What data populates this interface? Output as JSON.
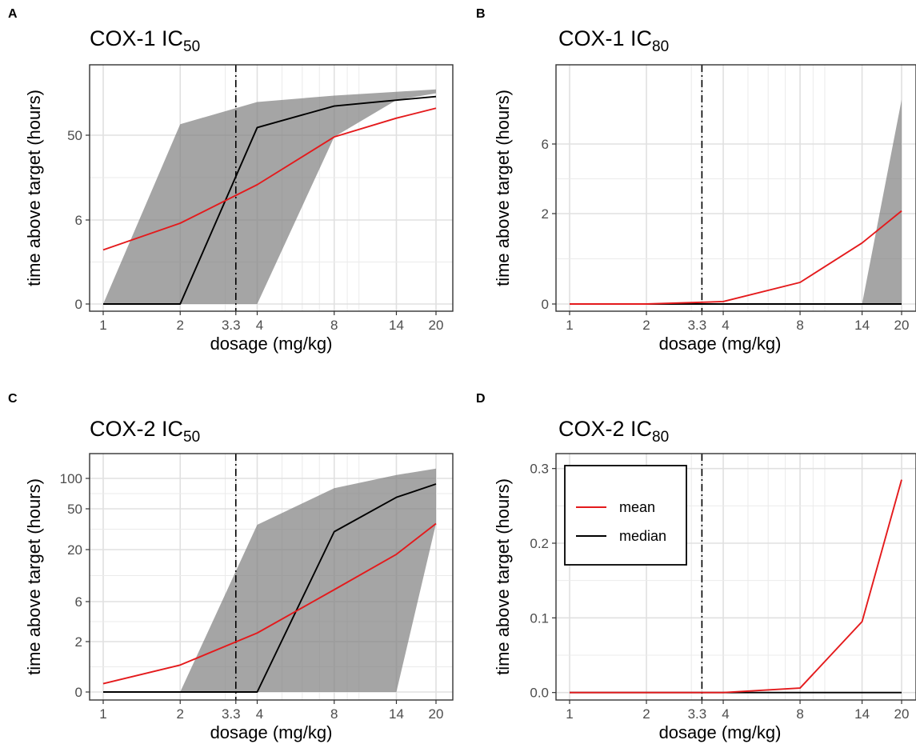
{
  "chart_data": [
    {
      "panel": "A",
      "type": "line",
      "title_main": "COX-1   IC",
      "title_sub": "50",
      "xlabel": "dosage (mg/kg)",
      "ylabel": "time above target (hours)",
      "x_scale": "log",
      "x_ticks": [
        "1",
        "2",
        "3.3",
        "4",
        "8",
        "14",
        "20"
      ],
      "x_tick_values": [
        1,
        2,
        3.3,
        4,
        8,
        14,
        20
      ],
      "y_ticks": [
        "0",
        "6",
        "50"
      ],
      "y_tick_values": [
        0,
        6,
        50
      ],
      "y_transform": "pseudo-log",
      "vline": 3.3,
      "x": [
        1,
        2,
        4,
        8,
        14,
        20
      ],
      "series": [
        {
          "name": "mean",
          "color": "#e41a1c",
          "values": [
            2.5,
            5.5,
            15,
            48,
            75,
            95
          ]
        },
        {
          "name": "median",
          "color": "#000000",
          "values": [
            0,
            0,
            60,
            100,
            115,
            125
          ]
        }
      ],
      "band": {
        "lower": [
          0,
          0,
          0,
          48,
          115,
          135
        ],
        "upper": [
          0,
          65,
          110,
          128,
          140,
          148
        ]
      }
    },
    {
      "panel": "B",
      "type": "line",
      "title_main": "COX-1   IC",
      "title_sub": "80",
      "xlabel": "dosage (mg/kg)",
      "ylabel": "time above target (hours)",
      "x_scale": "log",
      "x_ticks": [
        "1",
        "2",
        "3.3",
        "4",
        "8",
        "14",
        "20"
      ],
      "x_tick_values": [
        1,
        2,
        3.3,
        4,
        8,
        14,
        20
      ],
      "y_ticks": [
        "0",
        "2",
        "6"
      ],
      "y_tick_values": [
        0,
        2,
        6
      ],
      "y_transform": "pseudo-log",
      "vline": 3.3,
      "x": [
        1,
        2,
        4,
        8,
        14,
        20
      ],
      "series": [
        {
          "name": "mean",
          "color": "#e41a1c",
          "values": [
            0,
            0,
            0.03,
            0.3,
            1.1,
            2.1
          ]
        },
        {
          "name": "median",
          "color": "#000000",
          "values": [
            0,
            0,
            0,
            0,
            0,
            0
          ]
        }
      ],
      "band": {
        "lower": [
          0,
          0,
          0,
          0,
          0,
          0
        ],
        "upper": [
          0,
          0,
          0,
          0,
          0,
          11
        ]
      }
    },
    {
      "panel": "C",
      "type": "line",
      "title_main": "COX-2   IC",
      "title_sub": "50",
      "xlabel": "dosage (mg/kg)",
      "ylabel": "time above target (hours)",
      "x_scale": "log",
      "x_ticks": [
        "1",
        "2",
        "3.3",
        "4",
        "8",
        "14",
        "20"
      ],
      "x_tick_values": [
        1,
        2,
        3.3,
        4,
        8,
        14,
        20
      ],
      "y_ticks": [
        "0",
        "2",
        "6",
        "20",
        "50",
        "100"
      ],
      "y_tick_values": [
        0,
        2,
        6,
        20,
        50,
        100
      ],
      "y_transform": "pseudo-log",
      "vline": 3.3,
      "x": [
        1,
        2,
        4,
        8,
        14,
        20
      ],
      "series": [
        {
          "name": "mean",
          "color": "#e41a1c",
          "values": [
            0.2,
            0.8,
            2.6,
            8,
            18,
            36
          ]
        },
        {
          "name": "median",
          "color": "#000000",
          "values": [
            0,
            0,
            0,
            30,
            65,
            88
          ]
        }
      ],
      "band": {
        "lower": [
          0,
          0,
          0,
          0,
          0,
          36
        ],
        "upper": [
          0,
          0,
          35,
          80,
          108,
          125
        ]
      }
    },
    {
      "panel": "D",
      "type": "line",
      "title_main": "COX-2   IC",
      "title_sub": "80",
      "xlabel": "dosage (mg/kg)",
      "ylabel": "time above target (hours)",
      "x_scale": "log",
      "x_ticks": [
        "1",
        "2",
        "3.3",
        "4",
        "8",
        "14",
        "20"
      ],
      "x_tick_values": [
        1,
        2,
        3.3,
        4,
        8,
        14,
        20
      ],
      "y_ticks": [
        "0.0",
        "0.1",
        "0.2",
        "0.3"
      ],
      "y_tick_values": [
        0,
        0.1,
        0.2,
        0.3
      ],
      "y_transform": "linear",
      "ylim": [
        -0.01,
        0.32
      ],
      "vline": 3.3,
      "x": [
        1,
        2,
        4,
        8,
        14,
        20
      ],
      "series": [
        {
          "name": "mean",
          "color": "#e41a1c",
          "values": [
            0,
            0,
            0,
            0.006,
            0.095,
            0.285
          ]
        },
        {
          "name": "median",
          "color": "#000000",
          "values": [
            0,
            0,
            0,
            0,
            0,
            0
          ]
        }
      ],
      "band": null,
      "legend": {
        "position": "top-left",
        "entries": [
          {
            "label": "mean",
            "color": "#e41a1c"
          },
          {
            "label": "median",
            "color": "#000000"
          }
        ]
      }
    }
  ]
}
